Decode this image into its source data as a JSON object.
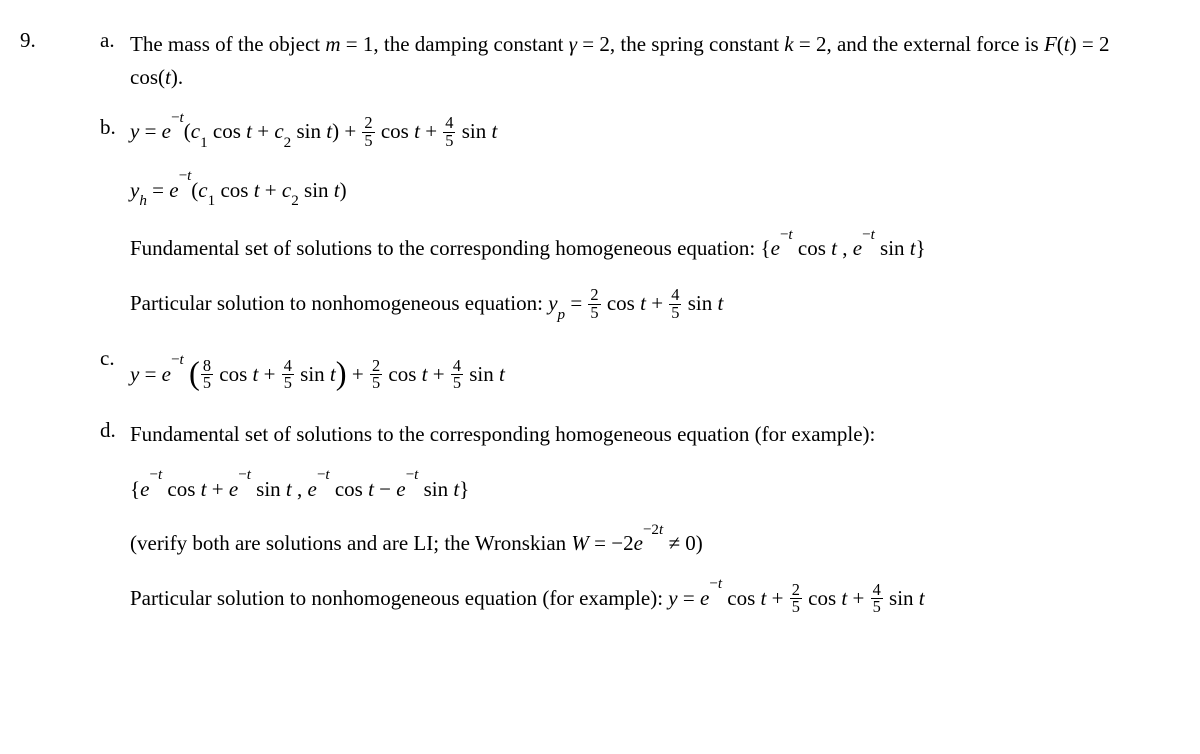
{
  "question_number": "9.",
  "parts": {
    "a": {
      "label": "a.",
      "prefix1": "The mass of the object ",
      "m_eq": "m",
      "eq1": " = 1",
      "mid1": ", the damping constant ",
      "gamma": "γ",
      "eq2": " = 2",
      "mid2": ", the spring constant ",
      "k": "k",
      "eq3": " = 2",
      "mid3": ", and the external force is ",
      "F": "F",
      "of_t": "(t)",
      "eq4": " = 2 cos(",
      "t4": "t",
      "close4": ")."
    },
    "b": {
      "label": "b.",
      "y": "y",
      "eq": " = ",
      "e": "e",
      "neg_t": "−t",
      "open": "(",
      "c1": "c",
      "one": "1",
      "cos": " cos ",
      "t": "t",
      "plus": " + ",
      "c2": "c",
      "two": "2",
      "sin": " sin ",
      "close": ")",
      "f25n": "2",
      "f25d": "5",
      "f45n": "4",
      "f45d": "5"
    },
    "yh": {
      "yh": "y",
      "h": "h",
      "eq": " = ",
      "e": "e",
      "neg_t": "−t",
      "open": "(",
      "c1": "c",
      "one": "1",
      "cos": " cos ",
      "t": "t",
      "plus": " + ",
      "c2": "c",
      "two": "2",
      "sin": " sin ",
      "close": ")"
    },
    "fund1": {
      "text1": "Fundamental set of solutions to the corresponding homogeneous equation: {",
      "e": "e",
      "neg_t": "−t",
      "cos": " cos ",
      "t": "t",
      "comma": " , ",
      "sin": " sin ",
      "close": "}"
    },
    "yp": {
      "text1": "Particular solution to nonhomogeneous equation: ",
      "yp": "y",
      "p": "p",
      "eq": " = ",
      "f25n": "2",
      "f25d": "5",
      "cos": " cos ",
      "t": "t",
      "plus": " + ",
      "f45n": "4",
      "f45d": "5",
      "sin": " sin "
    },
    "c": {
      "label": "c.",
      "y": "y",
      "eq": " = ",
      "e": "e",
      "neg_t": "−t",
      "f85n": "8",
      "f85d": "5",
      "cos": " cos ",
      "t": "t",
      "plus": " + ",
      "f45n": "4",
      "f45d": "5",
      "sin": " sin ",
      "f25n": "2",
      "f25d": "5"
    },
    "d": {
      "label": "d.",
      "text": "Fundamental set of solutions to the corresponding homogeneous equation (for example):"
    },
    "d_set": {
      "open": "{",
      "e": "e",
      "neg_t": "−t",
      "cos": " cos ",
      "t": "t",
      "plus": " + ",
      "sin": " sin ",
      "comma": " , ",
      "minus": " − ",
      "close": "}"
    },
    "d_wr": {
      "text1": "(verify both are solutions and are LI; the Wronskian ",
      "W": "W",
      "eq": " = −2",
      "e": "e",
      "neg2t": "−2t",
      "neq": " ≠ 0)"
    },
    "d_part": {
      "text1": "Particular solution to nonhomogeneous equation (for example): ",
      "y": "y",
      "eq": " = ",
      "e": "e",
      "neg_t": "−t",
      "cos": " cos ",
      "t": "t",
      "plus": " + ",
      "f25n": "2",
      "f25d": "5",
      "f45n": "4",
      "f45d": "5",
      "sin": " sin "
    }
  }
}
